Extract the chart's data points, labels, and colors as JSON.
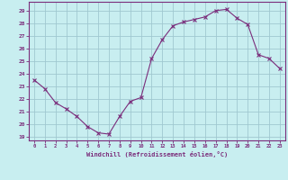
{
  "x": [
    0,
    1,
    2,
    3,
    4,
    5,
    6,
    7,
    8,
    9,
    10,
    11,
    12,
    13,
    14,
    15,
    16,
    17,
    18,
    19,
    20,
    21,
    22,
    23
  ],
  "y": [
    23.5,
    22.8,
    21.7,
    21.2,
    20.6,
    19.8,
    19.3,
    19.2,
    20.6,
    21.8,
    22.1,
    25.2,
    26.7,
    27.8,
    28.1,
    28.3,
    28.5,
    29.0,
    29.1,
    28.4,
    27.9,
    25.5,
    25.2,
    24.4
  ],
  "line_color": "#7b2d7b",
  "marker": "x",
  "background_color": "#c8eef0",
  "grid_color": "#a0c8d0",
  "xlabel": "Windchill (Refroidissement éolien,°C)",
  "ylabel_ticks": [
    19,
    20,
    21,
    22,
    23,
    24,
    25,
    26,
    27,
    28,
    29
  ],
  "ylim": [
    18.7,
    29.7
  ],
  "xlim": [
    -0.5,
    23.5
  ],
  "tick_color": "#7b2d7b",
  "label_color": "#7b2d7b",
  "axis_color": "#7b2d7b"
}
